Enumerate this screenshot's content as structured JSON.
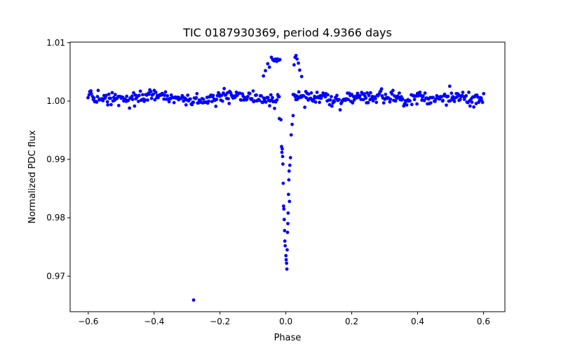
{
  "chart_data": {
    "type": "scatter",
    "title": "TIC 0187930369, period 4.9366 days",
    "xlabel": "Phase",
    "ylabel": "Normalized PDC flux",
    "xlim": [
      -0.655,
      0.665
    ],
    "ylim": [
      0.9639,
      1.0101
    ],
    "xticks": [
      -0.6,
      -0.4,
      -0.2,
      0.0,
      0.2,
      0.4,
      0.6
    ],
    "xtick_labels": [
      "−0.6",
      "−0.4",
      "−0.2",
      "0.0",
      "0.2",
      "0.4",
      "0.6"
    ],
    "yticks": [
      0.97,
      0.98,
      0.99,
      1.0,
      1.01
    ],
    "ytick_labels": [
      "0.97",
      "0.98",
      "0.99",
      "1.00",
      "1.01"
    ],
    "grid": false,
    "marker_color": "#0000ff",
    "baseline": {
      "description": "out-of-transit scatter, ~1 point per 0.0025 phase",
      "x_range": [
        -0.6,
        0.6
      ],
      "center": 1.0005,
      "scatter": 0.0011
    },
    "feature_points": {
      "x": [
        -0.28,
        -0.068,
        -0.062,
        -0.055,
        -0.05,
        -0.044,
        -0.04,
        -0.036,
        -0.032,
        -0.028,
        -0.025,
        -0.021,
        -0.018,
        -0.015,
        -0.013,
        -0.011,
        -0.01,
        -0.009,
        -0.008,
        -0.007,
        -0.006,
        -0.005,
        -0.004,
        -0.003,
        -0.002,
        0.0,
        0.001,
        0.002,
        0.003,
        0.004,
        0.005,
        0.006,
        0.007,
        0.008,
        0.009,
        0.01,
        0.012,
        0.014,
        0.016,
        0.019,
        0.022,
        0.025,
        0.028,
        0.031,
        0.034,
        0.038,
        0.042,
        0.048,
        -0.012,
        0.011,
        -0.02
      ],
      "y": [
        0.9659,
        1.0043,
        1.0052,
        1.0064,
        1.0058,
        1.0075,
        1.0071,
        1.0069,
        1.0072,
        1.0068,
        1.0072,
        1.007,
        1.0071,
        0.9968,
        0.9922,
        0.9918,
        0.9905,
        0.9892,
        0.9859,
        0.982,
        0.9815,
        0.9797,
        0.9778,
        0.976,
        0.9752,
        0.9735,
        0.9728,
        0.9722,
        0.9712,
        0.9745,
        0.9775,
        0.979,
        0.9808,
        0.984,
        0.9865,
        0.988,
        0.989,
        0.9903,
        0.9942,
        0.996,
        0.9975,
        1.0062,
        1.0075,
        1.0078,
        1.0072,
        1.0065,
        1.0053,
        1.0042,
        0.9912,
        0.9828,
        0.997
      ],
      "description": "transit dip near phase 0, pre/post-transit brightening, single outlier at phase -0.28"
    }
  }
}
